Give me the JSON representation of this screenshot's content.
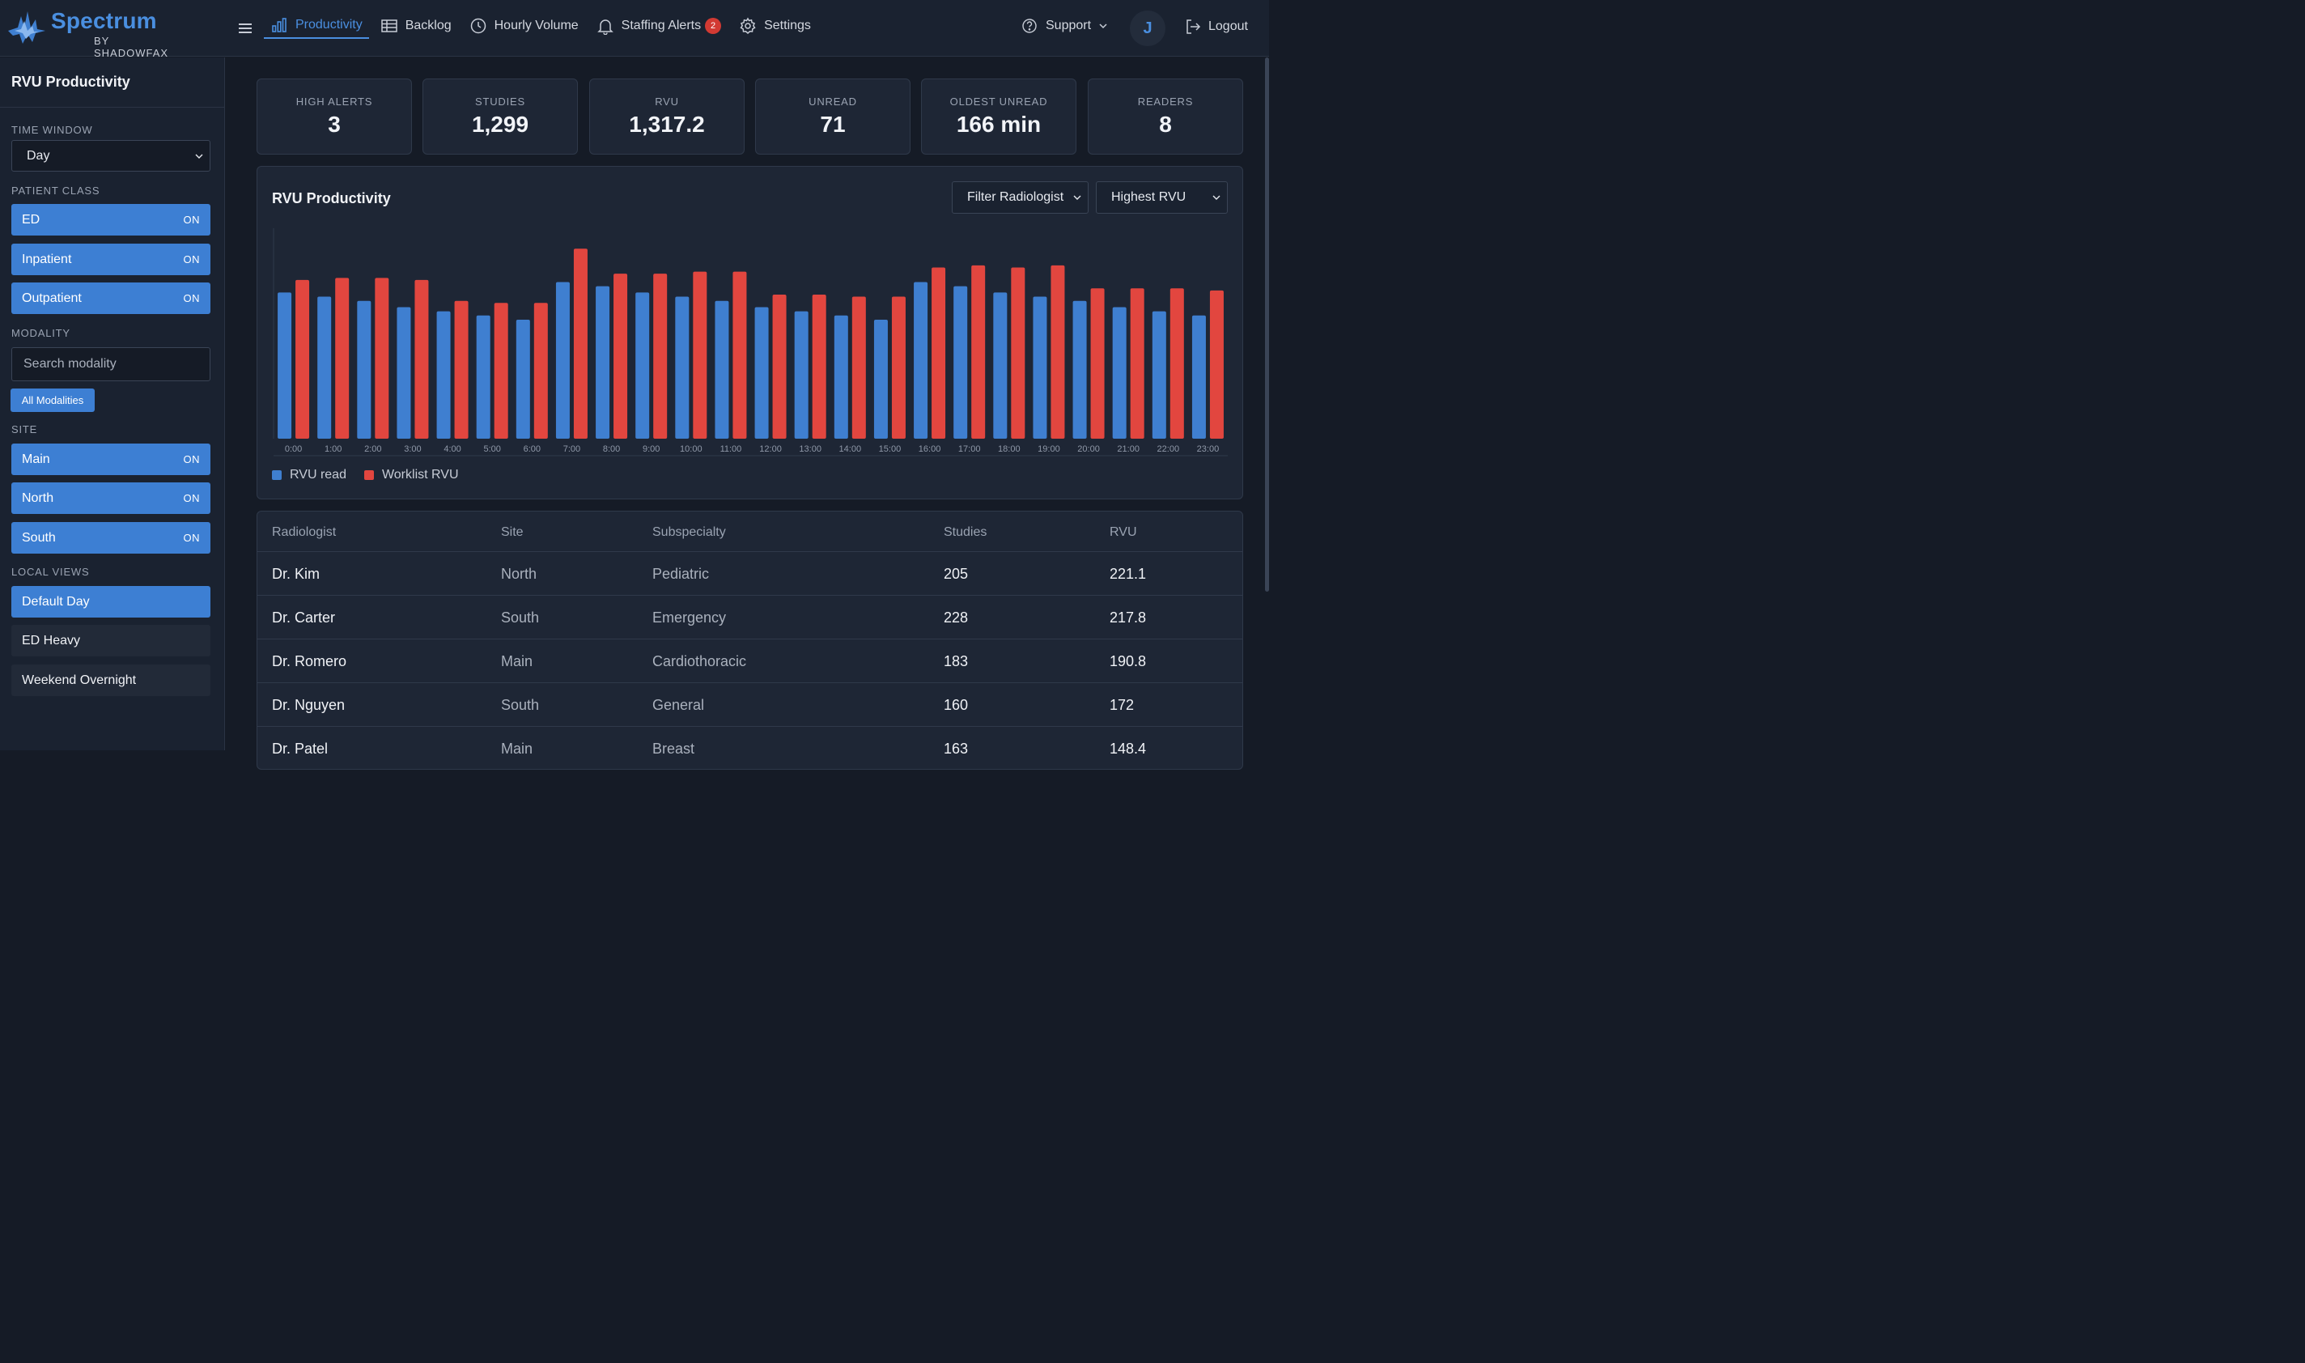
{
  "brand": {
    "name": "Spectrum",
    "sub": "BY SHADOWFAX"
  },
  "nav": {
    "items": [
      {
        "label": "Productivity",
        "icon": "bar-chart-icon",
        "active": true
      },
      {
        "label": "Backlog",
        "icon": "table-icon"
      },
      {
        "label": "Hourly Volume",
        "icon": "clock-icon"
      },
      {
        "label": "Staffing Alerts",
        "icon": "bell-icon",
        "badge": "2"
      },
      {
        "label": "Settings",
        "icon": "gear-icon"
      }
    ],
    "support": "Support",
    "avatar": "J",
    "logout": "Logout"
  },
  "sidebar": {
    "title": "RVU Productivity",
    "time_window": {
      "label": "TIME WINDOW",
      "value": "Day"
    },
    "patient_class": {
      "label": "PATIENT CLASS",
      "items": [
        {
          "label": "ED",
          "state": "ON"
        },
        {
          "label": "Inpatient",
          "state": "ON"
        },
        {
          "label": "Outpatient",
          "state": "ON"
        }
      ]
    },
    "modality": {
      "label": "MODALITY",
      "placeholder": "Search modality",
      "chip": "All Modalities"
    },
    "site": {
      "label": "SITE",
      "items": [
        {
          "label": "Main",
          "state": "ON"
        },
        {
          "label": "North",
          "state": "ON"
        },
        {
          "label": "South",
          "state": "ON"
        }
      ]
    },
    "local_views": {
      "label": "LOCAL VIEWS",
      "items": [
        {
          "label": "Default Day",
          "active": true
        },
        {
          "label": "ED Heavy"
        },
        {
          "label": "Weekend Overnight"
        }
      ]
    }
  },
  "stats": [
    {
      "label": "HIGH ALERTS",
      "value": "3"
    },
    {
      "label": "STUDIES",
      "value": "1,299"
    },
    {
      "label": "RVU",
      "value": "1,317.2"
    },
    {
      "label": "UNREAD",
      "value": "71"
    },
    {
      "label": "OLDEST UNREAD",
      "value": "166 min"
    },
    {
      "label": "READERS",
      "value": "8"
    }
  ],
  "chart_card": {
    "title": "RVU Productivity",
    "filter_select": "Filter Radiologist",
    "sort_select": "Highest RVU"
  },
  "chart_data": {
    "type": "bar",
    "categories": [
      "0:00",
      "1:00",
      "2:00",
      "3:00",
      "4:00",
      "5:00",
      "6:00",
      "7:00",
      "8:00",
      "9:00",
      "10:00",
      "11:00",
      "12:00",
      "13:00",
      "14:00",
      "15:00",
      "16:00",
      "17:00",
      "18:00",
      "19:00",
      "20:00",
      "21:00",
      "22:00",
      "23:00"
    ],
    "series": [
      {
        "name": "RVU read",
        "color": "#3f7fd0",
        "values": [
          70,
          68,
          66,
          63,
          61,
          59,
          57,
          75,
          73,
          70,
          68,
          66,
          63,
          61,
          59,
          57,
          75,
          73,
          70,
          68,
          66,
          63,
          61,
          59
        ]
      },
      {
        "name": "Worklist RVU",
        "color": "#e2463f",
        "values": [
          76,
          77,
          77,
          76,
          66,
          65,
          65,
          91,
          79,
          79,
          80,
          80,
          69,
          69,
          68,
          68,
          82,
          83,
          82,
          83,
          72,
          72,
          72,
          71
        ]
      }
    ],
    "ylim": [
      0,
      100
    ],
    "grid": false,
    "legend": "bottom-left"
  },
  "table": {
    "headers": [
      "Radiologist",
      "Site",
      "Subspecialty",
      "Studies",
      "RVU"
    ],
    "rows": [
      [
        "Dr. Kim",
        "North",
        "Pediatric",
        "205",
        "221.1"
      ],
      [
        "Dr. Carter",
        "South",
        "Emergency",
        "228",
        "217.8"
      ],
      [
        "Dr. Romero",
        "Main",
        "Cardiothoracic",
        "183",
        "190.8"
      ],
      [
        "Dr. Nguyen",
        "South",
        "General",
        "160",
        "172"
      ],
      [
        "Dr. Patel",
        "Main",
        "Breast",
        "163",
        "148.4"
      ]
    ]
  }
}
